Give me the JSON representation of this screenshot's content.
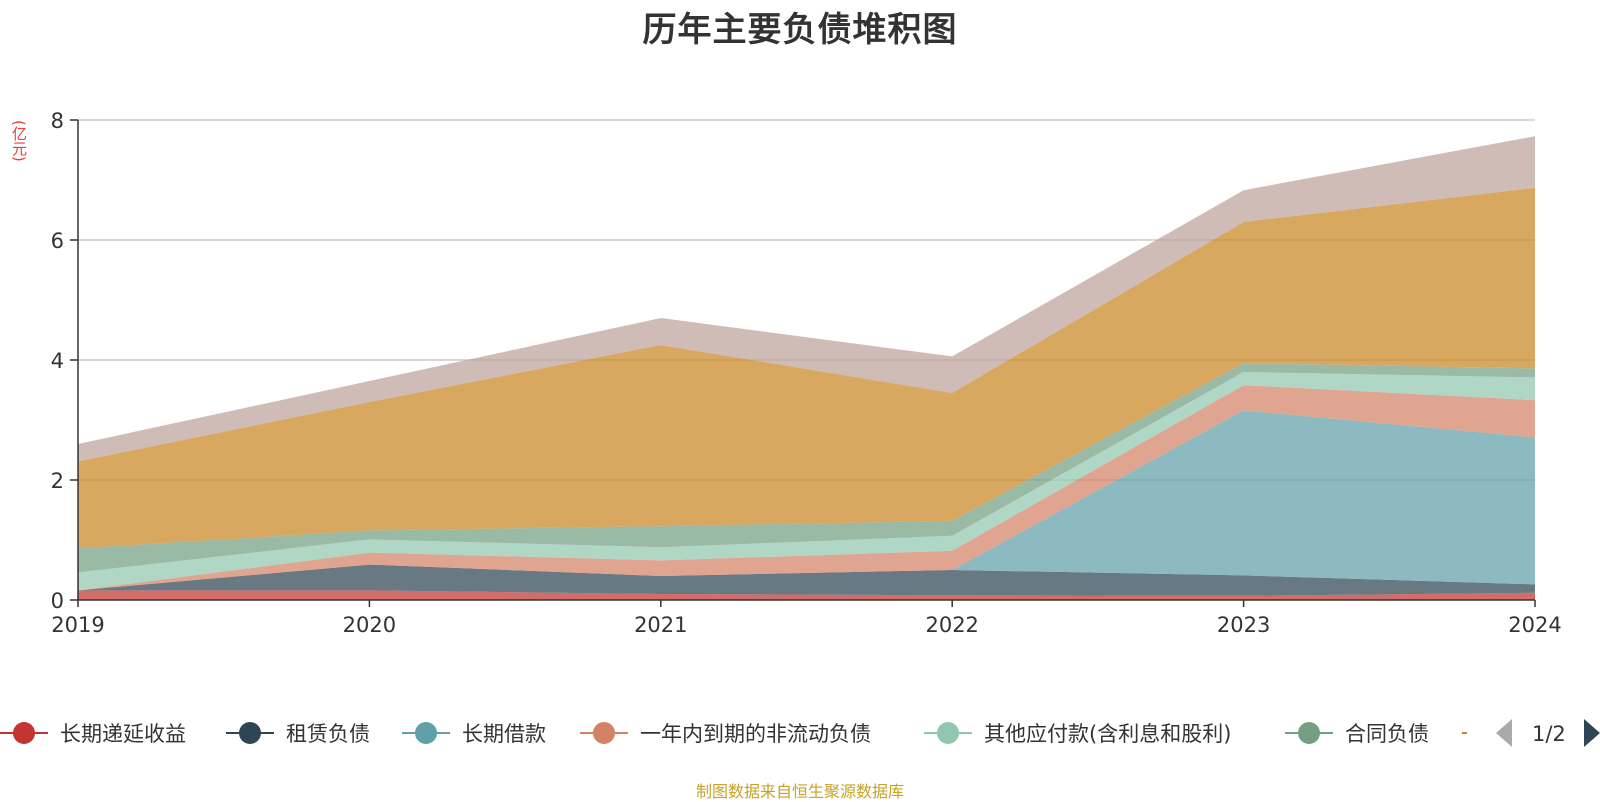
{
  "title": "历年主要负债堆积图",
  "source": "制图数据来自恒生聚源数据库",
  "chart_data": {
    "type": "area",
    "stacked": true,
    "title": "历年主要负债堆积图",
    "ylabel": "(亿元)",
    "ylim": [
      0,
      8
    ],
    "yticks": [
      "0",
      "2",
      "4",
      "6",
      "8"
    ],
    "x": [
      "2019",
      "2020",
      "2021",
      "2022",
      "2023",
      "2024"
    ],
    "grid": true,
    "legend_position": "bottom",
    "legend_page": "1/2",
    "series": [
      {
        "name": "长期递延收益",
        "color": "#c23531",
        "values": [
          0.16,
          0.16,
          0.1,
          0.08,
          0.07,
          0.12
        ]
      },
      {
        "name": "租赁负债",
        "color": "#2f4554",
        "values": [
          0.0,
          0.43,
          0.3,
          0.42,
          0.34,
          0.14
        ]
      },
      {
        "name": "长期借款",
        "color": "#61a0a8",
        "values": [
          0.0,
          0.0,
          0.0,
          0.0,
          2.75,
          2.45
        ]
      },
      {
        "name": "一年内到期的非流动负债",
        "color": "#d48265",
        "values": [
          0.0,
          0.2,
          0.26,
          0.32,
          0.42,
          0.62
        ]
      },
      {
        "name": "其他应付款(含利息和股利)",
        "color": "#91c7ae",
        "values": [
          0.3,
          0.22,
          0.22,
          0.25,
          0.22,
          0.38
        ]
      },
      {
        "name": "合同负债",
        "color": "#749f83",
        "values": [
          0.4,
          0.15,
          0.35,
          0.25,
          0.15,
          0.15
        ]
      },
      {
        "name": "",
        "color": "#ca8622",
        "values": [
          1.45,
          2.14,
          3.02,
          2.13,
          2.35,
          3.01
        ]
      },
      {
        "name": "",
        "color": "#bda29a",
        "values": [
          0.29,
          0.35,
          0.45,
          0.61,
          0.53,
          0.86
        ]
      }
    ]
  }
}
